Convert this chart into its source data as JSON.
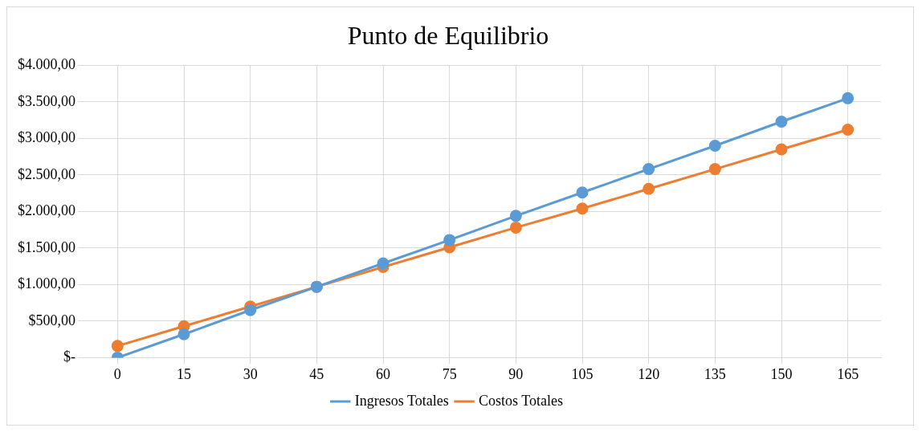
{
  "chart_data": {
    "type": "line",
    "title": "Punto de Equilibrio",
    "categories": [
      "0",
      "15",
      "30",
      "45",
      "60",
      "75",
      "90",
      "105",
      "120",
      "135",
      "150",
      "165"
    ],
    "series": [
      {
        "name": "Ingresos Totales",
        "color": "#5b9bd5",
        "values": [
          0,
          320,
          650,
          970,
          1290,
          1610,
          1940,
          2260,
          2580,
          2900,
          3230,
          3550
        ]
      },
      {
        "name": "Costos Totales",
        "color": "#ed7d31",
        "values": [
          160,
          430,
          700,
          970,
          1240,
          1510,
          1780,
          2040,
          2310,
          2580,
          2850,
          3120
        ]
      }
    ],
    "ylim": [
      0,
      4000
    ],
    "yticks": [
      {
        "value": 0,
        "label": "$-"
      },
      {
        "value": 500,
        "label": "$500,00"
      },
      {
        "value": 1000,
        "label": "$1.000,00"
      },
      {
        "value": 1500,
        "label": "$1.500,00"
      },
      {
        "value": 2000,
        "label": "$2.000,00"
      },
      {
        "value": 2500,
        "label": "$2.500,00"
      },
      {
        "value": 3000,
        "label": "$3.000,00"
      },
      {
        "value": 3500,
        "label": "$3.500,00"
      },
      {
        "value": 4000,
        "label": "$4.000,00"
      }
    ],
    "grid": true,
    "legend": "bottom",
    "marker": "circle",
    "line_style": "solid"
  }
}
